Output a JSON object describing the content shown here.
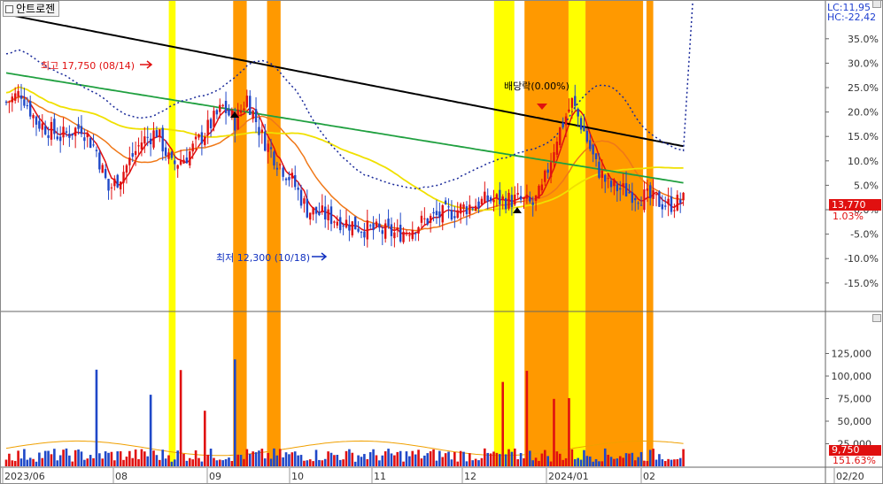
{
  "stock_name": "안트로젠",
  "lc_label": "LC:11,95",
  "hc_label": "HC:-22,42",
  "max_annotation": "최고 17,750 (08/14)",
  "min_annotation": "최저 12,300 (10/18)",
  "dividend_annotation": "배당락(0.00%)",
  "current_price": "13,770",
  "current_change": "1.03%",
  "current_volume": "9,750",
  "volume_pct": "151.63%",
  "colors": {
    "up": "#e01010",
    "down": "#1f48c8",
    "highlight_yellow": "#ffff00",
    "highlight_orange": "#ff9900",
    "ma5": "#e01010",
    "ma20": "#f07818",
    "ma60": "#f0e000",
    "ma120": "#20a040",
    "ma240": "#000000",
    "envelope": "#1a2a9a"
  },
  "chart_data": [
    {
      "type": "candlestick",
      "y_axis_ticks": [
        "35.0%",
        "30.0%",
        "25.0%",
        "20.0%",
        "15.0%",
        "10.0%",
        "5.0%",
        "0.0%",
        "-5.0%",
        "-10.0%",
        "-15.0%"
      ],
      "ylim_pct": [
        -20,
        38
      ],
      "x_axis_labels": [
        "2023/06",
        "08",
        "09",
        "10",
        "11",
        "12",
        "2024/01",
        "02",
        "02/20"
      ],
      "highlight_bands": [
        {
          "color": "yellow",
          "start_day": 48,
          "end_day": 49
        },
        {
          "color": "orange",
          "start_day": 67,
          "end_day": 70
        },
        {
          "color": "orange",
          "start_day": 77,
          "end_day": 80
        },
        {
          "color": "yellow",
          "start_day": 144,
          "end_day": 149
        },
        {
          "color": "orange",
          "start_day": 153,
          "end_day": 165
        },
        {
          "color": "yellow",
          "start_day": 166,
          "end_day": 170
        },
        {
          "color": "orange",
          "start_day": 171,
          "end_day": 187
        },
        {
          "color": "orange",
          "start_day": 189,
          "end_day": 190
        }
      ],
      "moving_averages": [
        "ma5",
        "ma20",
        "ma60",
        "ma120",
        "ma240",
        "envelope"
      ]
    },
    {
      "type": "bar",
      "name": "volume",
      "y_axis_ticks": [
        "125,000",
        "100,000",
        "75,000",
        "50,000",
        "25,000"
      ],
      "ylim": [
        0,
        150000
      ]
    }
  ]
}
